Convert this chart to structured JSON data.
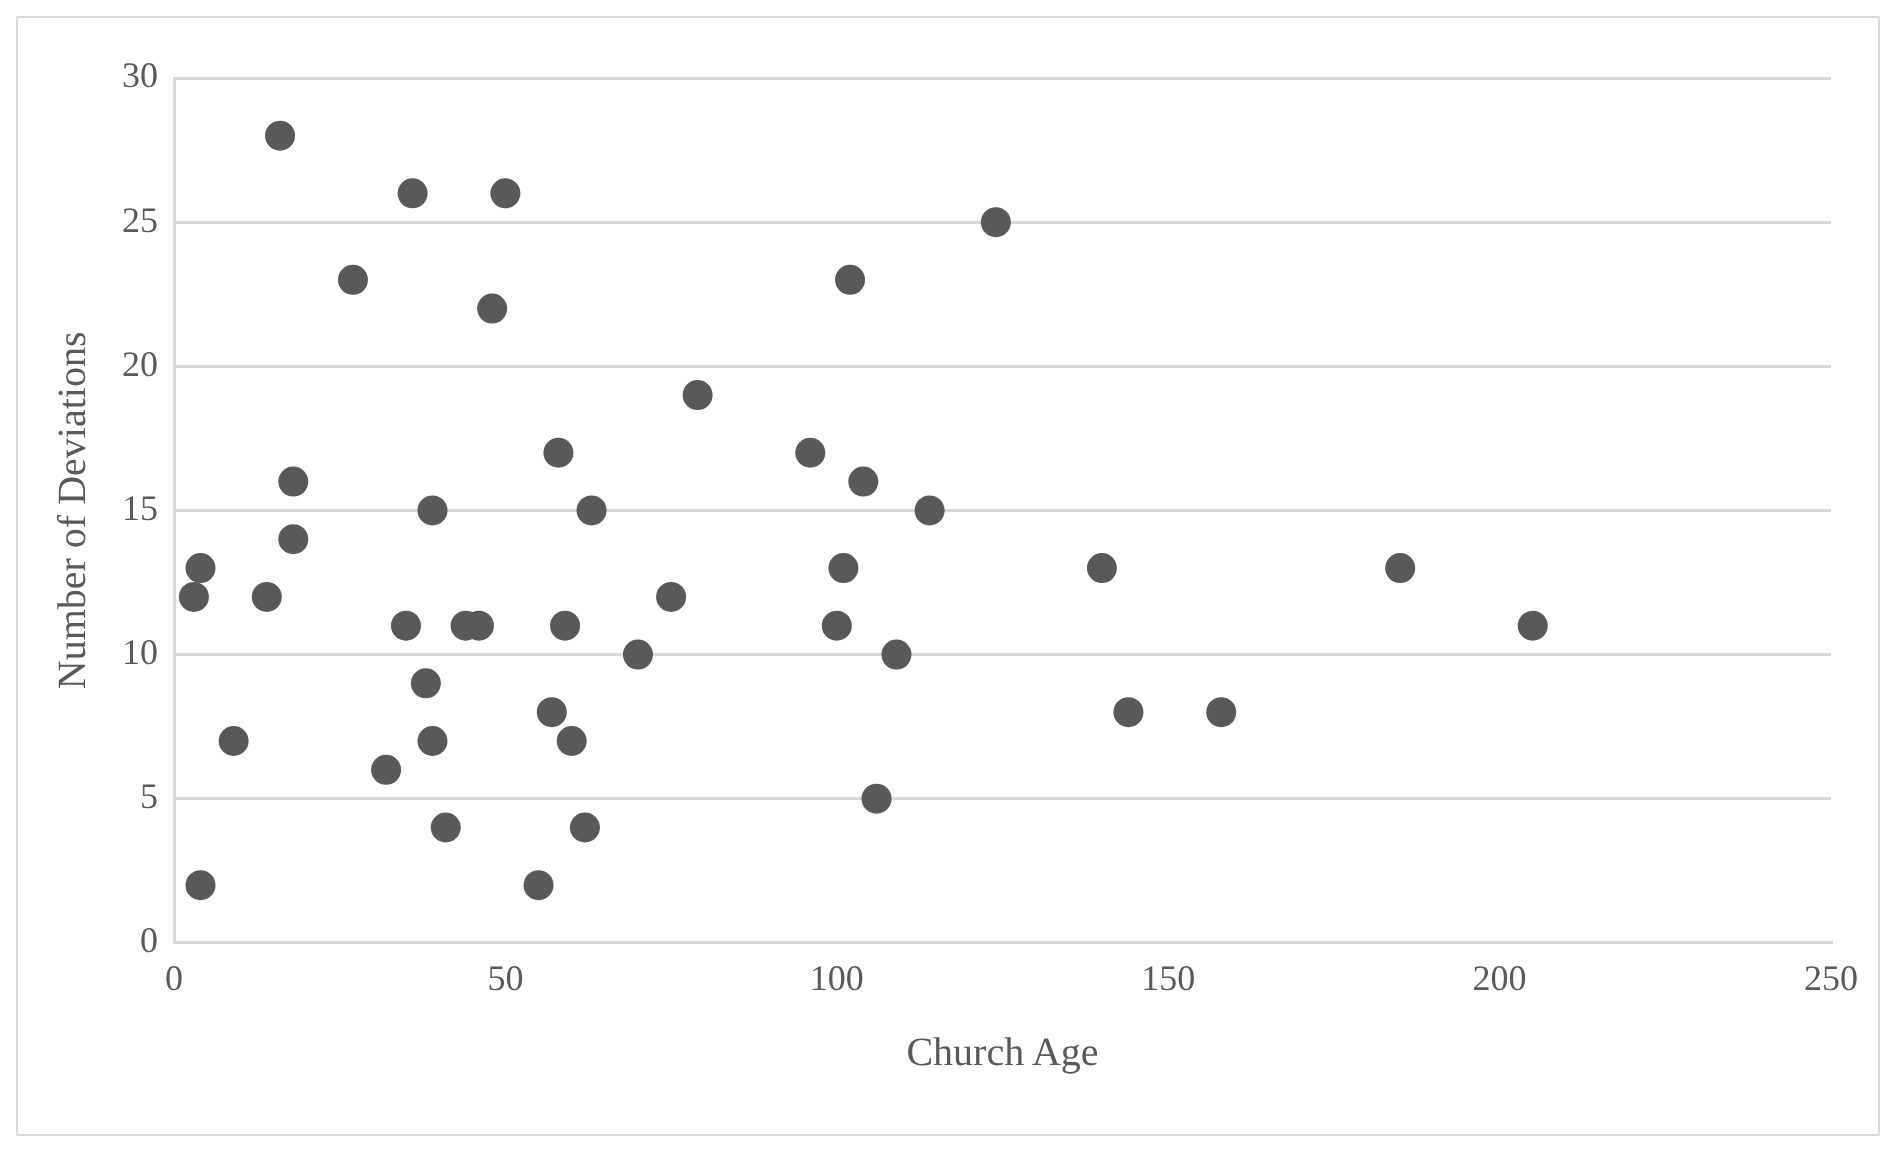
{
  "chart_data": {
    "type": "scatter",
    "xlabel": "Church Age",
    "ylabel": "Number of Deviations",
    "xlim": [
      0,
      250
    ],
    "xticks": [
      0,
      50,
      100,
      150,
      200,
      250
    ],
    "ylim": [
      0,
      30
    ],
    "yticks": [
      0,
      5,
      10,
      15,
      20,
      25,
      30
    ],
    "grid": "y",
    "legend": false,
    "marker": "circle",
    "series": [
      {
        "color": "#595959",
        "x": [
          3,
          4,
          4,
          9,
          14,
          16,
          18,
          18,
          27,
          32,
          35,
          36,
          38,
          39,
          39,
          41,
          44,
          46,
          48,
          50,
          55,
          57,
          58,
          59,
          60,
          62,
          63,
          70,
          75,
          79,
          96,
          100,
          101,
          102,
          104,
          106,
          109,
          114,
          124,
          140,
          144,
          158,
          185,
          205
        ],
        "values": [
          12,
          13,
          2,
          7,
          12,
          28,
          16,
          14,
          23,
          6,
          11,
          26,
          9,
          15,
          7,
          4,
          11,
          11,
          22,
          26,
          2,
          8,
          17,
          11,
          7,
          4,
          15,
          10,
          12,
          19,
          17,
          11,
          13,
          23,
          16,
          5,
          10,
          15,
          25,
          13,
          8,
          8,
          13,
          11
        ]
      }
    ]
  }
}
